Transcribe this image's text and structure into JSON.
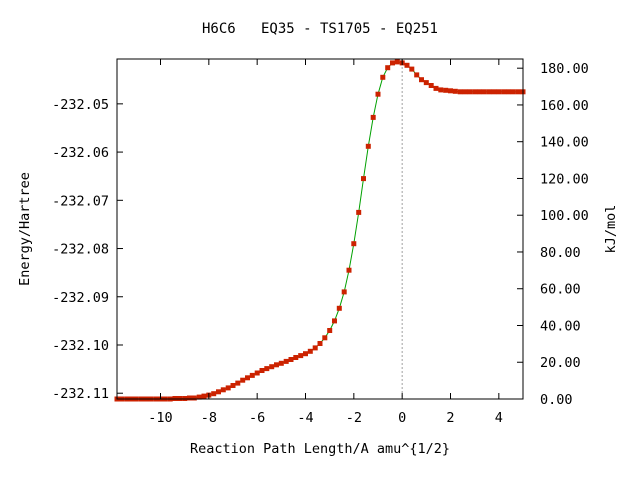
{
  "chart_data": {
    "type": "line",
    "title": "H6C6   EQ35 - TS1705 - EQ251",
    "xlabel": "Reaction Path Length/A amu^{1/2}",
    "ylabel": "Energy/Hartree",
    "y2label": "kJ/mol",
    "xlim": [
      -11.8,
      5.0
    ],
    "ylim": [
      -232.1112,
      -232.0407
    ],
    "y2lim": [
      0.0,
      185.0
    ],
    "x_ticks": [
      -10,
      -8,
      -6,
      -4,
      -2,
      0,
      2,
      4
    ],
    "x_tick_labels": [
      "-10",
      "-8",
      "-6",
      "-4",
      "-2",
      "0",
      "2",
      "4"
    ],
    "y_ticks": [
      -232.11,
      -232.1,
      -232.09,
      -232.08,
      -232.07,
      -232.06,
      -232.05
    ],
    "y_tick_labels": [
      "-232.11",
      "-232.10",
      "-232.09",
      "-232.08",
      "-232.07",
      "-232.06",
      "-232.05"
    ],
    "y2_ticks": [
      0,
      20,
      40,
      60,
      80,
      100,
      120,
      140,
      160,
      180
    ],
    "y2_tick_labels": [
      "0.00",
      "20.00",
      "40.00",
      "60.00",
      "80.00",
      "100.00",
      "120.00",
      "140.00",
      "160.00",
      "180.00"
    ],
    "ts_marker_x": 0,
    "grid": false,
    "legend": "none",
    "colors": {
      "line": "#00a000",
      "marker": "#cc2200",
      "ts_line": "#a0a0a0",
      "axis": "#000000"
    },
    "series": [
      {
        "x": [
          -11.8,
          -11.6,
          -11.4,
          -11.2,
          -11.0,
          -10.8,
          -10.6,
          -10.4,
          -10.2,
          -10.0,
          -9.8,
          -9.6,
          -9.4,
          -9.2,
          -9.0,
          -8.8,
          -8.6,
          -8.4,
          -8.2,
          -8.0,
          -7.8,
          -7.6,
          -7.4,
          -7.2,
          -7.0,
          -6.8,
          -6.6,
          -6.4,
          -6.2,
          -6.0,
          -5.8,
          -5.6,
          -5.4,
          -5.2,
          -5.0,
          -4.8,
          -4.6,
          -4.4,
          -4.2,
          -4.0,
          -3.8,
          -3.6,
          -3.4,
          -3.2,
          -3.0,
          -2.8,
          -2.6,
          -2.4,
          -2.2,
          -2.0,
          -1.8,
          -1.6,
          -1.4,
          -1.2,
          -1.0,
          -0.8,
          -0.6,
          -0.4,
          -0.2,
          0.0,
          0.2,
          0.4,
          0.6,
          0.8,
          1.0,
          1.2,
          1.4,
          1.6,
          1.8,
          2.0,
          2.2,
          2.4,
          2.6,
          2.8,
          3.0,
          3.2,
          3.4,
          3.6,
          3.8,
          4.0,
          4.2,
          4.4,
          4.6,
          4.8,
          5.0
        ],
        "y": [
          -232.1112,
          -232.1112,
          -232.1112,
          -232.1112,
          -232.1112,
          -232.1112,
          -232.1112,
          -232.1112,
          -232.1112,
          -232.1112,
          -232.1112,
          -232.1112,
          -232.1111,
          -232.1111,
          -232.1111,
          -232.111,
          -232.111,
          -232.1108,
          -232.1106,
          -232.1104,
          -232.1101,
          -232.1097,
          -232.1093,
          -232.1089,
          -232.1084,
          -232.1079,
          -232.1073,
          -232.1068,
          -232.1063,
          -232.1058,
          -232.1053,
          -232.1049,
          -232.1045,
          -232.1041,
          -232.1038,
          -232.1034,
          -232.103,
          -232.1026,
          -232.1022,
          -232.1018,
          -232.1013,
          -232.1006,
          -232.0997,
          -232.0985,
          -232.097,
          -232.095,
          -232.0924,
          -232.089,
          -232.0845,
          -232.079,
          -232.0725,
          -232.0655,
          -232.0588,
          -232.0528,
          -232.048,
          -232.0445,
          -232.0425,
          -232.0415,
          -232.0413,
          -232.0415,
          -232.042,
          -232.0428,
          -232.044,
          -232.045,
          -232.0456,
          -232.0462,
          -232.0468,
          -232.0471,
          -232.0472,
          -232.0473,
          -232.0474,
          -232.0475,
          -232.0475,
          -232.0475,
          -232.0475,
          -232.0475,
          -232.0475,
          -232.0475,
          -232.0475,
          -232.0475,
          -232.0475,
          -232.0475,
          -232.0475,
          -232.0475,
          -232.0475
        ]
      }
    ]
  }
}
